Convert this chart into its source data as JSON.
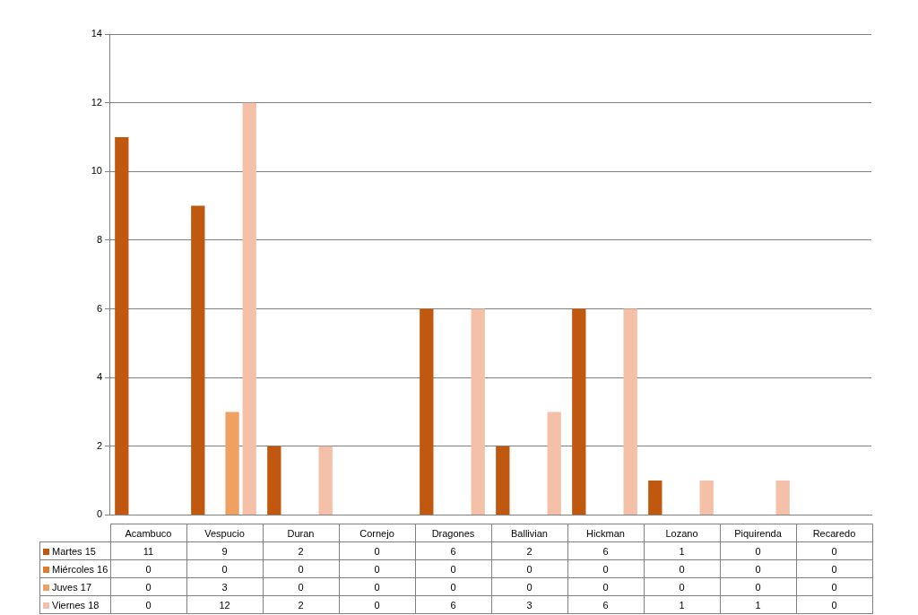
{
  "chart_data": {
    "type": "bar",
    "categories": [
      "Acambuco",
      "Vespucio",
      "Duran",
      "Cornejo",
      "Dragones",
      "Ballivian",
      "Hickman",
      "Lozano",
      "Piquirenda",
      "Recaredo"
    ],
    "series": [
      {
        "name": "Martes 15",
        "color": "#c0580f",
        "values": [
          11,
          9,
          2,
          0,
          6,
          2,
          6,
          1,
          0,
          0
        ]
      },
      {
        "name": "Miércoles 16",
        "color": "#e07b2a",
        "values": [
          0,
          0,
          0,
          0,
          0,
          0,
          0,
          0,
          0,
          0
        ]
      },
      {
        "name": "Juves 17",
        "color": "#f0a060",
        "values": [
          0,
          3,
          0,
          0,
          0,
          0,
          0,
          0,
          0,
          0
        ]
      },
      {
        "name": "Viernes 18",
        "color": "#f5c0a8",
        "values": [
          0,
          12,
          2,
          0,
          6,
          3,
          6,
          1,
          1,
          0
        ]
      }
    ],
    "ylim": [
      0,
      14
    ],
    "yticks": [
      0,
      2,
      4,
      6,
      8,
      10,
      12,
      14
    ],
    "grid": "y",
    "legend": "bottom",
    "data_labels": true
  }
}
